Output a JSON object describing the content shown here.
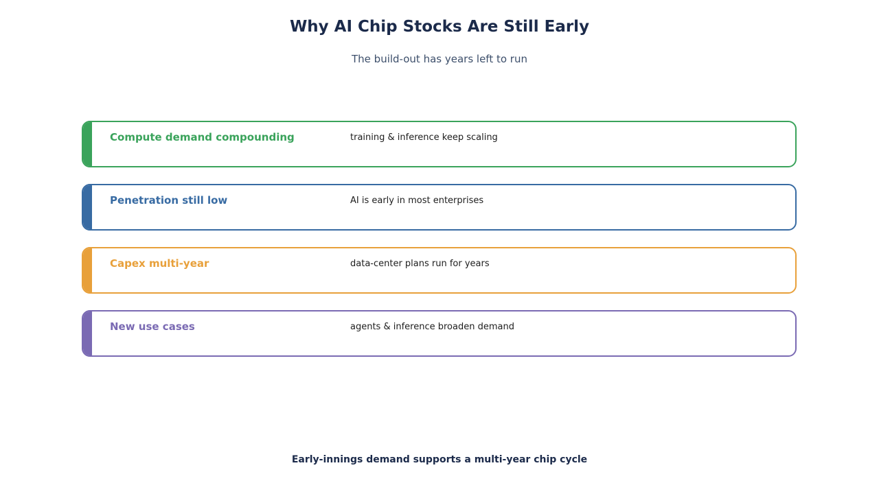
{
  "title": "Why AI Chip Stocks Are Still Early",
  "subtitle": "The build-out has years left to run",
  "rows": [
    {
      "heading": "Compute demand compounding",
      "description": "training & inference keep scaling",
      "color": "#3aa35b"
    },
    {
      "heading": "Penetration still low",
      "description": "AI is early in most enterprises",
      "color": "#386ba3"
    },
    {
      "heading": "Capex multi-year",
      "description": "data-center plans run for years",
      "color": "#e8a03a"
    },
    {
      "heading": "New use cases",
      "description": "agents & inference broaden demand",
      "color": "#7a6ab3"
    }
  ],
  "footer": "Early-innings demand supports a multi-year chip cycle"
}
